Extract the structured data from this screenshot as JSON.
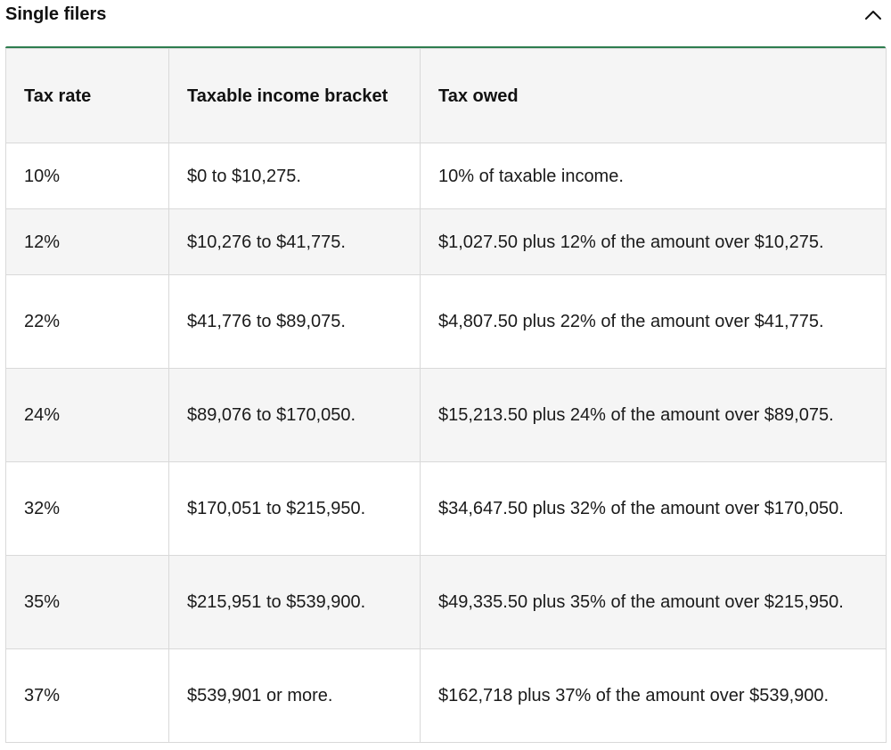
{
  "accordion": {
    "title": "Single filers",
    "toggle_icon": "chevron-up-icon",
    "accent_color": "#2e7d4f"
  },
  "table": {
    "headers": [
      "Tax rate",
      "Taxable income bracket",
      "Tax owed"
    ],
    "rows": [
      [
        "10%",
        "$0 to $10,275.",
        "10% of taxable income."
      ],
      [
        "12%",
        "$10,276 to $41,775.",
        "$1,027.50 plus 12% of the amount over $10,275."
      ],
      [
        "22%",
        "$41,776 to $89,075.",
        "$4,807.50 plus 22% of the amount over $41,775."
      ],
      [
        "24%",
        "$89,076 to $170,050.",
        "$15,213.50 plus 24% of the amount over $89,075."
      ],
      [
        "32%",
        "$170,051 to $215,950.",
        "$34,647.50 plus 32% of the amount over $170,050."
      ],
      [
        "35%",
        "$215,951 to $539,900.",
        "$49,335.50 plus 35% of the amount over $215,950."
      ],
      [
        "37%",
        "$539,901 or more.",
        "$162,718 plus 37% of the amount over $539,900."
      ]
    ]
  }
}
